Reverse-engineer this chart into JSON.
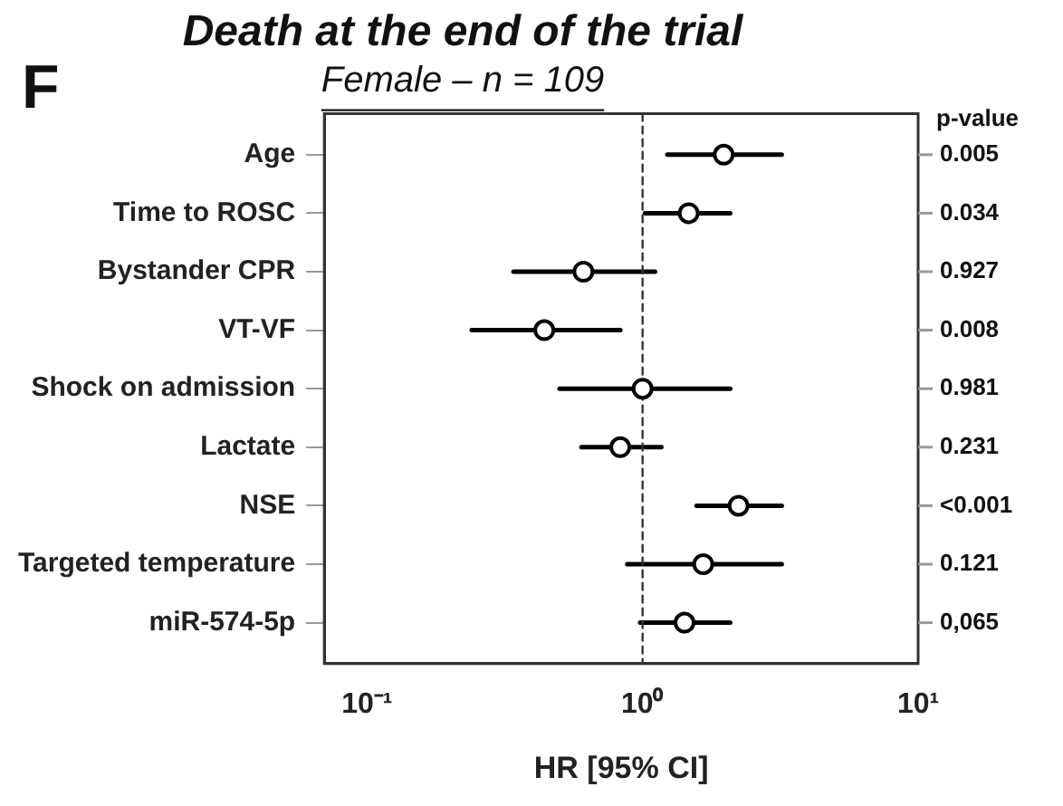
{
  "chart_data": {
    "type": "scatter",
    "title": "Death at the end of the trial",
    "subtitle": "Female – n = 109",
    "xlabel": "HR [95% CI]",
    "orientation": "horizontal",
    "categories": [
      "Age",
      "Time to ROSC",
      "Bystander CPR",
      "VT-VF",
      "Shock on admission",
      "Lactate",
      "NSE",
      "Targeted temperature",
      "miR-574-5p"
    ],
    "values": [
      1.97,
      1.47,
      0.61,
      0.44,
      1.0,
      0.83,
      2.23,
      1.66,
      1.42
    ],
    "errors": [
      [
        1.23,
        3.2
      ],
      [
        1.02,
        2.08
      ],
      [
        0.34,
        1.11
      ],
      [
        0.24,
        0.83
      ],
      [
        0.5,
        2.08
      ],
      [
        0.6,
        1.17
      ],
      [
        1.57,
        3.2
      ],
      [
        0.88,
        3.2
      ],
      [
        0.98,
        2.08
      ]
    ],
    "color": "#000000",
    "log": "x",
    "xlim": [
      0.07,
      10
    ],
    "xticks": [
      {
        "value": 0.1,
        "label": "10⁻¹"
      },
      {
        "value": 1,
        "label": "10⁰"
      },
      {
        "value": 10,
        "label": "10¹"
      }
    ],
    "ref_lines": [
      {
        "axis": "x",
        "value": 1,
        "line_style": "dashed"
      }
    ],
    "marker": "circle",
    "grid": false,
    "legend": false,
    "annotations": [
      "F",
      "p-value",
      "0.005",
      "0.034",
      "0.927",
      "0.008",
      "0.981",
      "0.231",
      "<0.001",
      "0.121",
      "0,065"
    ]
  }
}
